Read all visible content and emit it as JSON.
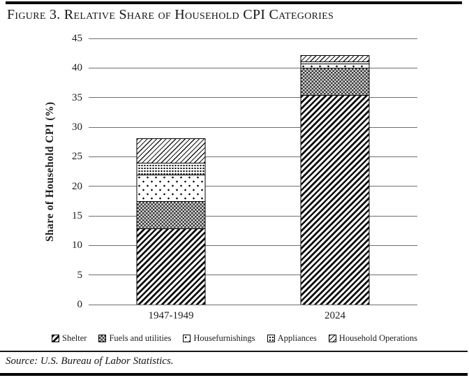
{
  "figure": {
    "title": "Figure 3. Relative Share of Household CPI Categories",
    "source": "Source: U.S. Bureau of Labor Statistics."
  },
  "chart_data": {
    "type": "bar",
    "stacked": true,
    "title": "Figure 3. Relative Share of Household CPI Categories",
    "categories": [
      "1947-1949",
      "2024"
    ],
    "series": [
      {
        "name": "Shelter",
        "pattern": "bold-diagonal-hatch",
        "values": [
          12.9,
          35.4
        ]
      },
      {
        "name": "Fuels and utilities",
        "pattern": "checkerboard",
        "values": [
          4.6,
          4.6
        ]
      },
      {
        "name": "Housefurnishings",
        "pattern": "sparse-dots",
        "values": [
          4.5,
          0.7
        ]
      },
      {
        "name": "Appliances",
        "pattern": "dense-dots",
        "values": [
          2.0,
          0.4
        ]
      },
      {
        "name": "Household Operations",
        "pattern": "light-diagonal-hatch",
        "values": [
          4.0,
          0.9
        ]
      }
    ],
    "totals": [
      28.0,
      42.0
    ],
    "xlabel": "",
    "ylabel": "Share of Household CPI (%)",
    "ylim": [
      0,
      45
    ],
    "yticks": [
      0,
      5,
      10,
      15,
      20,
      25,
      30,
      35,
      40,
      45
    ],
    "grid": true,
    "legend_position": "bottom",
    "colors": {
      "ink": "#000000",
      "gridline": "#6f6f6f",
      "background": "#ffffff"
    }
  }
}
